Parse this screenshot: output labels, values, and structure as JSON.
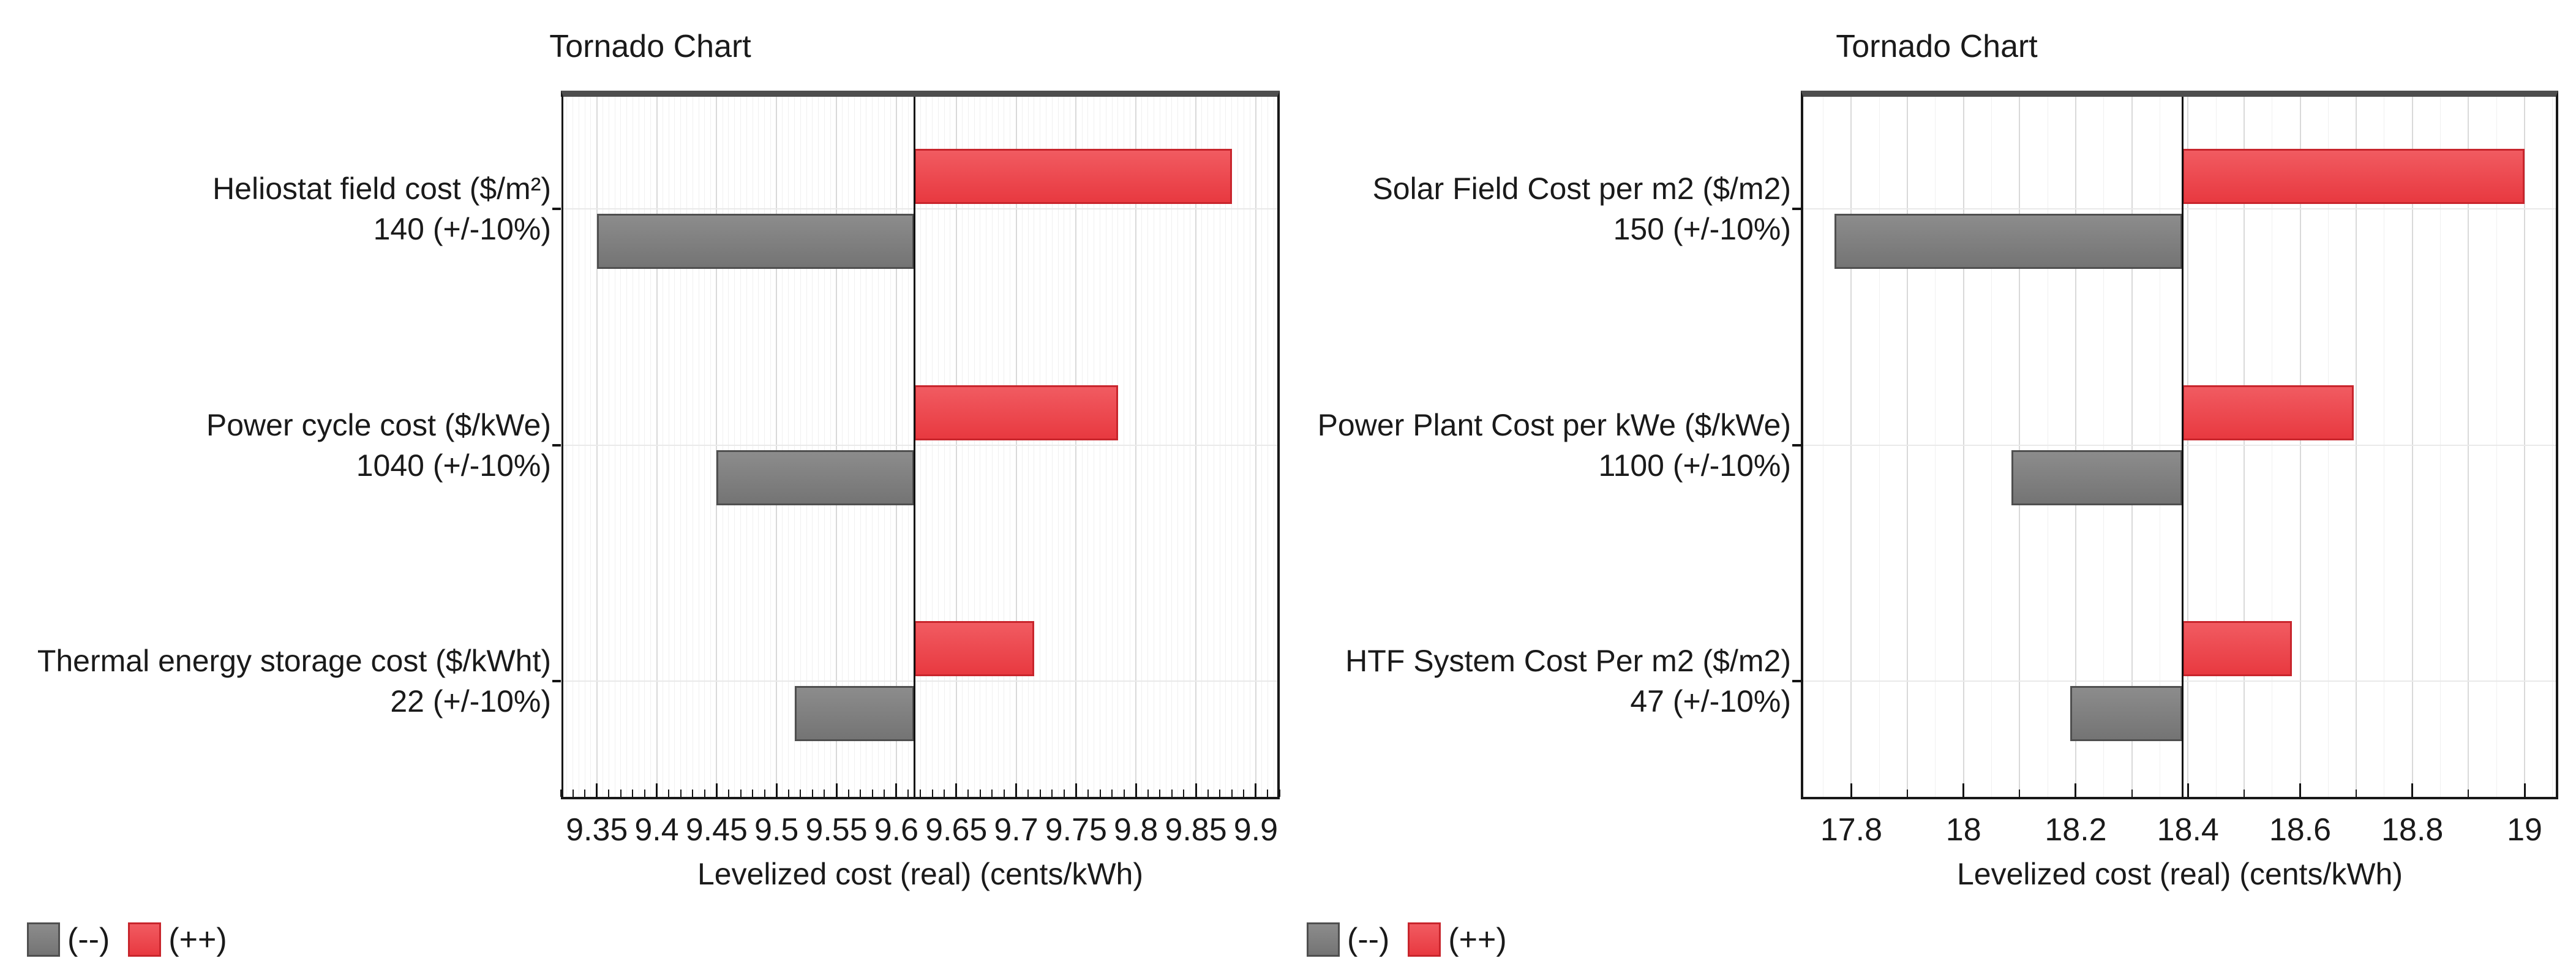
{
  "colors": {
    "negative_fill": "#7d7d7d",
    "negative_border": "#4f4f4f",
    "positive_fill": "#ed4248",
    "positive_border": "#c8252c",
    "text": "#1a1a1a"
  },
  "chart_data": [
    {
      "type": "bar",
      "variant": "tornado",
      "title": "Tornado Chart",
      "xlabel": "Levelized cost (real) (cents/kWh)",
      "baseline": 9.615,
      "xlim": [
        9.32,
        9.92
      ],
      "grid": "vertical-minor-and-major",
      "x_ticks": {
        "values": [
          9.35,
          9.4,
          9.45,
          9.5,
          9.55,
          9.6,
          9.65,
          9.7,
          9.75,
          9.8,
          9.85,
          9.9
        ],
        "labels": [
          "9.35",
          "9.4",
          "9.45",
          "9.5",
          "9.55",
          "9.6",
          "9.65",
          "9.7",
          "9.75",
          "9.8",
          "9.85",
          "9.9"
        ]
      },
      "rows": [
        {
          "name": "Heliostat field cost ($/m²)",
          "value_label": "140 (+/-10%)",
          "low": 9.35,
          "high": 9.88
        },
        {
          "name": "Power cycle cost ($/kWe)",
          "value_label": "1040 (+/-10%)",
          "low": 9.45,
          "high": 9.785
        },
        {
          "name": "Thermal energy storage cost ($/kWht)",
          "value_label": "22 (+/-10%)",
          "low": 9.515,
          "high": 9.715
        }
      ],
      "legend": {
        "negative": "(--)",
        "positive": "(++)"
      }
    },
    {
      "type": "bar",
      "variant": "tornado",
      "title": "Tornado Chart",
      "xlabel": "Levelized cost (real) (cents/kWh)",
      "baseline": 18.39,
      "xlim": [
        17.71,
        19.06
      ],
      "grid": "vertical-minor-and-major",
      "x_ticks": {
        "values": [
          17.8,
          18,
          18.2,
          18.4,
          18.6,
          18.8,
          19
        ],
        "labels": [
          "17.8",
          "18",
          "18.2",
          "18.4",
          "18.6",
          "18.8",
          "19"
        ]
      },
      "rows": [
        {
          "name": "Solar Field Cost per m2 ($/m2)",
          "value_label": "150 (+/-10%)",
          "low": 17.77,
          "high": 19.0
        },
        {
          "name": "Power Plant Cost per kWe ($/kWe)",
          "value_label": "1100 (+/-10%)",
          "low": 18.085,
          "high": 18.695
        },
        {
          "name": "HTF System Cost Per m2 ($/m2)",
          "value_label": "47 (+/-10%)",
          "low": 18.19,
          "high": 18.585
        }
      ],
      "legend": {
        "negative": "(--)",
        "positive": "(++)"
      }
    }
  ]
}
